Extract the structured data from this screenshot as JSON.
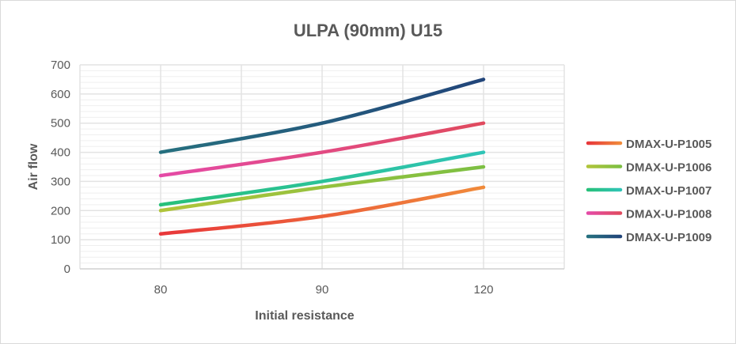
{
  "chart_data": {
    "type": "line",
    "title": "ULPA (90mm) U15",
    "xlabel": "Initial resistance",
    "ylabel": "Air flow",
    "categories": [
      "80",
      "90",
      "120"
    ],
    "ylim": [
      0,
      700
    ],
    "yticks": [
      0,
      100,
      200,
      300,
      400,
      500,
      600,
      700
    ],
    "grid": true,
    "legend_position": "right",
    "series": [
      {
        "name": "DMAX-U-P1005",
        "values": [
          120,
          180,
          280
        ],
        "colors": [
          "#e8373a",
          "#f08a3a"
        ]
      },
      {
        "name": "DMAX-U-P1006",
        "values": [
          200,
          280,
          350
        ],
        "colors": [
          "#b0c43a",
          "#7cbf42"
        ]
      },
      {
        "name": "DMAX-U-P1007",
        "values": [
          220,
          300,
          400
        ],
        "colors": [
          "#27c07a",
          "#2fc4b6"
        ]
      },
      {
        "name": "DMAX-U-P1008",
        "values": [
          320,
          400,
          500
        ],
        "colors": [
          "#e44aa6",
          "#e04a5e"
        ]
      },
      {
        "name": "DMAX-U-P1009",
        "values": [
          400,
          500,
          650
        ],
        "colors": [
          "#26707f",
          "#22457a"
        ]
      }
    ]
  }
}
